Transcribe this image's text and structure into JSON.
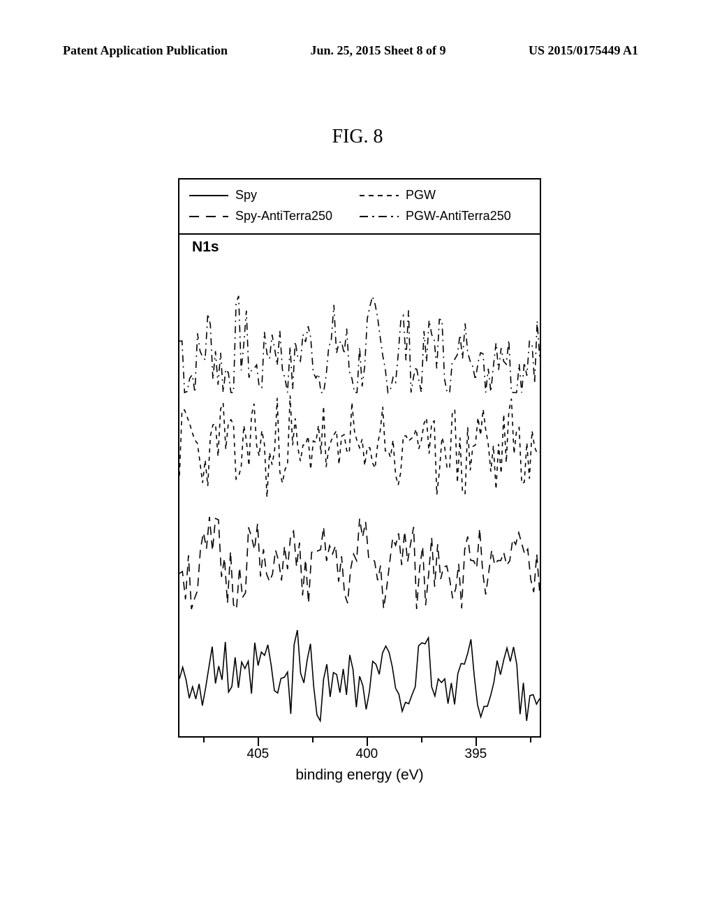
{
  "header": {
    "left": "Patent Application Publication",
    "center": "Jun. 25, 2015  Sheet 8 of 9",
    "right": "US 2015/0175449 A1"
  },
  "figure_title": "FIG. 8",
  "legend": {
    "items": [
      {
        "label": "Spy",
        "style": "solid"
      },
      {
        "label": "PGW",
        "style": "dash-short"
      },
      {
        "label": "Spy-AntiTerra250",
        "style": "dash-long"
      },
      {
        "label": "PGW-AntiTerra250",
        "style": "dash-dot"
      }
    ]
  },
  "chart": {
    "corner_label": "N1s",
    "x_label": "binding energy (eV)",
    "x_ticks": [
      {
        "label": "405",
        "pos_pct": 22
      },
      {
        "label": "400",
        "pos_pct": 52
      },
      {
        "label": "395",
        "pos_pct": 82
      }
    ],
    "x_minor_ticks_pct": [
      7,
      37,
      67,
      97
    ],
    "line_color": "#000000",
    "background_color": "#ffffff"
  }
}
